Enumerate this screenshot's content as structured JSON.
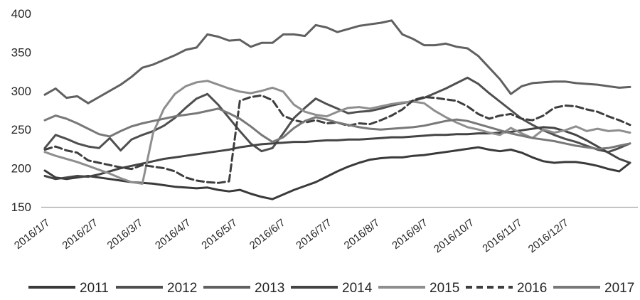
{
  "chart_data": {
    "type": "line",
    "title": "",
    "xlabel": "",
    "ylabel": "",
    "ylim": [
      150,
      400
    ],
    "y_ticks": [
      "400",
      "350",
      "300",
      "250",
      "200",
      "150"
    ],
    "y_tick_values": [
      400,
      350,
      300,
      250,
      200,
      150
    ],
    "x_tick_labels": [
      "2016/1/7",
      "2016/2/7",
      "2016/3/7",
      "2016/4/7",
      "2016/5/7",
      "2016/6/7",
      "2016/7/7",
      "2016/8/7",
      "2016/9/7",
      "2016/10/7",
      "2016/11/7",
      "2016/12/7"
    ],
    "x_tick_days": [
      7,
      38,
      67,
      98,
      128,
      159,
      189,
      220,
      251,
      281,
      312,
      342
    ],
    "x_unit": "weekly points (day of year, starting 7, step 7)",
    "grid": false,
    "legend_position": "bottom",
    "axis_color": "#a6a6a6",
    "text_color": "#262626",
    "background": "#ffffff",
    "series": [
      {
        "name": "2011",
        "color": "#3a3a3a",
        "dash": null,
        "values": [
          197,
          188,
          186,
          188,
          190,
          188,
          186,
          184,
          182,
          181,
          180,
          178,
          176,
          175,
          174,
          175,
          172,
          170,
          172,
          167,
          163,
          160,
          166,
          172,
          177,
          182,
          189,
          196,
          202,
          207,
          211,
          213,
          214,
          214,
          216,
          217,
          219,
          221,
          223,
          225,
          227,
          224,
          222,
          224,
          220,
          214,
          209,
          207,
          208,
          208,
          206,
          203,
          199,
          196,
          207
        ]
      },
      {
        "name": "2012",
        "color": "#4f4f4f",
        "dash": null,
        "values": [
          226,
          243,
          238,
          232,
          228,
          226,
          239,
          223,
          237,
          243,
          248,
          255,
          265,
          278,
          290,
          296,
          282,
          265,
          248,
          232,
          222,
          226,
          245,
          265,
          278,
          290,
          283,
          277,
          271,
          273,
          274,
          277,
          281,
          284,
          287,
          291,
          297,
          303,
          310,
          317,
          309,
          297,
          286,
          275,
          264,
          256,
          249,
          243,
          238,
          234,
          229,
          224,
          221,
          226,
          232
        ]
      },
      {
        "name": "2013",
        "color": "#606060",
        "dash": null,
        "values": [
          295,
          303,
          291,
          293,
          284,
          292,
          300,
          308,
          318,
          330,
          334,
          340,
          346,
          353,
          356,
          373,
          370,
          365,
          366,
          357,
          362,
          362,
          373,
          373,
          371,
          385,
          382,
          376,
          380,
          384,
          386,
          388,
          391,
          373,
          367,
          359,
          359,
          361,
          357,
          355,
          345,
          330,
          315,
          296,
          306,
          310,
          311,
          312,
          312,
          310,
          309,
          308,
          306,
          304,
          305
        ]
      },
      {
        "name": "2014",
        "color": "#444444",
        "dash": null,
        "values": [
          190,
          186,
          188,
          190,
          189,
          192,
          196,
          200,
          203,
          206,
          209,
          212,
          214,
          216,
          218,
          220,
          222,
          224,
          227,
          229,
          231,
          232,
          233,
          234,
          234,
          235,
          236,
          236,
          237,
          237,
          238,
          239,
          240,
          240,
          241,
          242,
          243,
          243,
          244,
          244,
          245,
          245,
          246,
          247,
          249,
          251,
          253,
          252,
          248,
          243,
          236,
          228,
          220,
          212,
          207
        ]
      },
      {
        "name": "2015",
        "color": "#8e8e8e",
        "dash": null,
        "values": [
          221,
          216,
          212,
          208,
          203,
          198,
          193,
          187,
          182,
          180,
          246,
          277,
          296,
          306,
          311,
          313,
          308,
          303,
          299,
          297,
          300,
          304,
          299,
          282,
          273,
          269,
          267,
          273,
          278,
          279,
          277,
          280,
          283,
          285,
          286,
          284,
          274,
          266,
          259,
          253,
          250,
          246,
          243,
          252,
          245,
          239,
          250,
          246,
          249,
          254,
          248,
          251,
          248,
          249,
          246
        ]
      },
      {
        "name": "2016",
        "color": "#3e3e3e",
        "dash": "10,5",
        "values": [
          224,
          228,
          223,
          220,
          210,
          207,
          204,
          201,
          199,
          204,
          202,
          200,
          196,
          188,
          184,
          182,
          181,
          183,
          287,
          292,
          294,
          288,
          268,
          262,
          259,
          262,
          258,
          259,
          255,
          258,
          257,
          262,
          268,
          276,
          288,
          292,
          291,
          289,
          287,
          280,
          270,
          264,
          268,
          270,
          264,
          262,
          268,
          278,
          281,
          280,
          276,
          273,
          267,
          262,
          256
        ]
      },
      {
        "name": "2017",
        "color": "#787878",
        "dash": null,
        "values": [
          262,
          268,
          264,
          258,
          251,
          244,
          241,
          248,
          254,
          258,
          261,
          264,
          267,
          269,
          271,
          274,
          277,
          271,
          264,
          254,
          243,
          234,
          240,
          252,
          261,
          266,
          263,
          259,
          256,
          253,
          251,
          250,
          251,
          252,
          253,
          255,
          258,
          261,
          263,
          261,
          257,
          253,
          249,
          245,
          242,
          239,
          237,
          235,
          232,
          229,
          227,
          225,
          226,
          229,
          232
        ]
      }
    ],
    "legend_entries": [
      "2011",
      "2012",
      "2013",
      "2014",
      "2015",
      "2016",
      "2017"
    ]
  }
}
